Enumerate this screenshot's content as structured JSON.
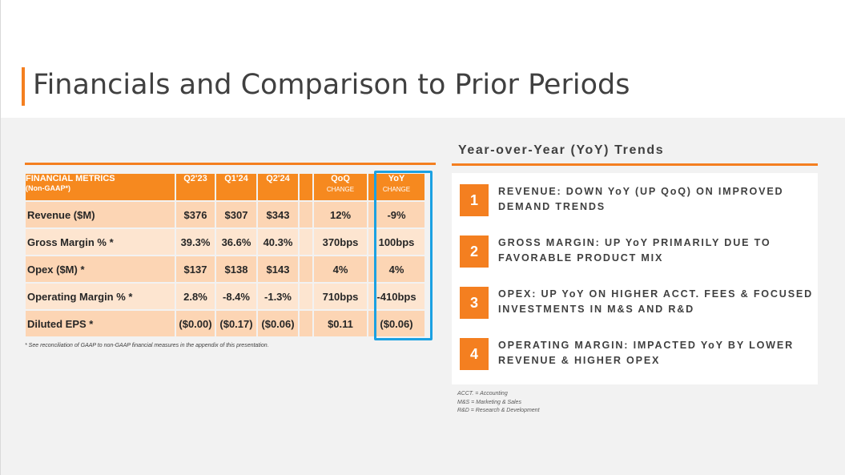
{
  "title": "Financials and Comparison to Prior Periods",
  "table": {
    "header": {
      "metric": "FINANCIAL METRICS",
      "metric_sub": "(Non-GAAP*)",
      "q1": "Q2'23",
      "q2": "Q1'24",
      "q3": "Q2'24",
      "qoq": "QoQ",
      "qoq_sub": "CHANGE",
      "yoy": "YoY",
      "yoy_sub": "CHANGE"
    },
    "rows": [
      {
        "label": "Revenue ($M)",
        "q1": "$376",
        "q2": "$307",
        "q3": "$343",
        "qoq": "12%",
        "yoy": "-9%"
      },
      {
        "label": "Gross Margin % *",
        "q1": "39.3%",
        "q2": "36.6%",
        "q3": "40.3%",
        "qoq": "370bps",
        "yoy": "100bps"
      },
      {
        "label": "Opex ($M) *",
        "q1": "$137",
        "q2": "$138",
        "q3": "$143",
        "qoq": "4%",
        "yoy": "4%"
      },
      {
        "label": "Operating Margin % *",
        "q1": "2.8%",
        "q2": "-8.4%",
        "q3": "-1.3%",
        "qoq": "710bps",
        "yoy": "-410bps"
      },
      {
        "label": "Diluted EPS *",
        "q1": "($0.00)",
        "q2": "($0.17)",
        "q3": "($0.06)",
        "qoq": "$0.11",
        "yoy": "($0.06)"
      }
    ],
    "footnote": "* See reconciliation of GAAP to non-GAAP financial measures in the appendix of this presentation."
  },
  "trends": {
    "title": "Year-over-Year (YoY) Trends",
    "items": [
      {
        "num": "1",
        "text": "REVENUE: DOWN YoY (UP QoQ) ON IMPROVED DEMAND TRENDS"
      },
      {
        "num": "2",
        "text": "GROSS MARGIN: UP YoY PRIMARILY DUE TO FAVORABLE PRODUCT MIX"
      },
      {
        "num": "3",
        "text": "OPEX: UP YoY ON HIGHER ACCT. FEES & FOCUSED INVESTMENTS IN M&S AND R&D"
      },
      {
        "num": "4",
        "text": "OPERATING MARGIN: IMPACTED YoY BY LOWER REVENUE & HIGHER OPEX"
      }
    ]
  },
  "legend": [
    "ACCT. = Accounting",
    "M&S = Marketing & Sales",
    "R&D = Research & Development"
  ],
  "colors": {
    "accent": "#f47f20",
    "highlight_box": "#1ba1e2",
    "row_light": "#fde5d0",
    "row_dark": "#fcd5b4"
  }
}
